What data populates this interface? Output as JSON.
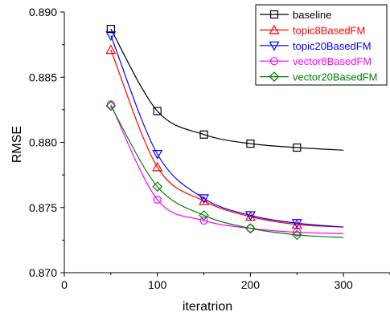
{
  "chart_data": {
    "type": "line",
    "title": "",
    "xlabel": "iteratrion",
    "ylabel": "RMSE",
    "xlim": [
      0,
      350
    ],
    "ylim": [
      0.87,
      0.89
    ],
    "x_ticks": [
      0,
      100,
      200,
      300
    ],
    "x_tick_labels": [
      "0",
      "100",
      "200",
      "300"
    ],
    "y_ticks": [
      0.87,
      0.875,
      0.88,
      0.885,
      0.89
    ],
    "y_tick_labels": [
      "0.870",
      "0.875",
      "0.880",
      "0.885",
      "0.890"
    ],
    "grid": false,
    "legend_position": "top-right",
    "marker_x": [
      50,
      100,
      150,
      200,
      250
    ],
    "curve_x_end": 300,
    "series": [
      {
        "name": "baseline",
        "color": "#000000",
        "marker": "square",
        "values": [
          0.8887,
          0.8824,
          0.8806,
          0.8799,
          0.8796
        ],
        "end_value": 0.8794
      },
      {
        "name": "topic8BasedFM",
        "color": "#ff0000",
        "marker": "triangle-up",
        "values": [
          0.8871,
          0.8781,
          0.8755,
          0.8743,
          0.8737
        ],
        "end_value": 0.8735
      },
      {
        "name": "topic20BasedFM",
        "color": "#0000ff",
        "marker": "triangle-down",
        "values": [
          0.8882,
          0.8791,
          0.8757,
          0.8744,
          0.8738
        ],
        "end_value": 0.8735
      },
      {
        "name": "vector8BasedFM",
        "color": "#ff00ff",
        "marker": "circle",
        "values": [
          0.8829,
          0.8756,
          0.874,
          0.8734,
          0.8731
        ],
        "end_value": 0.873
      },
      {
        "name": "vector20BasedFM",
        "color": "#008000",
        "marker": "diamond",
        "values": [
          0.8828,
          0.8766,
          0.8744,
          0.8734,
          0.8729
        ],
        "end_value": 0.8727
      }
    ]
  }
}
